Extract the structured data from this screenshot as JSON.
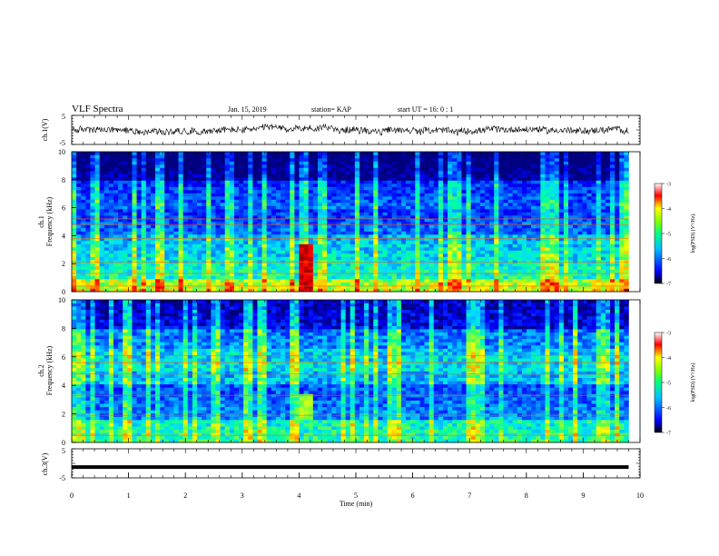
{
  "header": {
    "title": "VLF Spectra",
    "date": "Jan. 15, 2019",
    "station": "station= KAP",
    "start_ut": "start  UT =   16: 0  : 1"
  },
  "colorbar_label": "log(PSD) (V²/Hz)",
  "colormap": [
    "#00007f",
    "#0000ff",
    "#0080ff",
    "#00ffff",
    "#80ff80",
    "#ffff00",
    "#ff8000",
    "#ff0000",
    "#7f0000"
  ],
  "chart_data": [
    {
      "type": "line",
      "panel": "ch1-waveform",
      "ylabel": "ch.1(V)",
      "ylim": [
        -5,
        5
      ],
      "yticks": [
        "5",
        "-5"
      ],
      "xlim": [
        0,
        10
      ],
      "description_series": "broadband noise waveform roughly between -2 and 2 V"
    },
    {
      "type": "heatmap",
      "panel": "ch1-spectrogram",
      "ylabel": "ch.1\nFrequency (kHz)",
      "ylabel_line1": "ch.1",
      "ylabel_line2": "Frequency (kHz)",
      "xlim": [
        0,
        10
      ],
      "ylim": [
        0,
        10
      ],
      "yticks": [
        "0",
        "2",
        "4",
        "6",
        "8",
        "10"
      ],
      "data_extent_min": 9.8,
      "colorbar": {
        "min": -7,
        "max": -3,
        "ticks": [
          "-3",
          "-4",
          "-5",
          "-6",
          "-7"
        ]
      },
      "burst_event": {
        "t_min": 4.1,
        "f_khz": [
          0.1,
          3.5
        ],
        "log_psd": -3.2
      }
    },
    {
      "type": "heatmap",
      "panel": "ch2-spectrogram",
      "ylabel_line1": "ch.2",
      "ylabel_line2": "Frequency (kHz)",
      "xlim": [
        0,
        10
      ],
      "ylim": [
        0,
        10
      ],
      "yticks": [
        "0",
        "2",
        "4",
        "6",
        "8",
        "10"
      ],
      "data_extent_min": 9.8,
      "colorbar": {
        "min": -7,
        "max": -3,
        "ticks": [
          "-3",
          "-4",
          "-5",
          "-6",
          "-7"
        ]
      },
      "burst_event": {
        "t_min": 4.1,
        "f_khz": [
          1.5,
          3.5
        ],
        "log_psd": -4.5
      }
    },
    {
      "type": "line",
      "panel": "ch3-waveform",
      "ylabel": "ch.3(V)",
      "ylim": [
        -5,
        5
      ],
      "yticks": [
        "5",
        "-5"
      ],
      "xlim": [
        0,
        10
      ],
      "constant_value": -1.3
    }
  ],
  "xaxis": {
    "label": "Time (min)",
    "ticks": [
      "0",
      "1",
      "2",
      "3",
      "4",
      "5",
      "6",
      "7",
      "8",
      "9",
      "10"
    ]
  }
}
